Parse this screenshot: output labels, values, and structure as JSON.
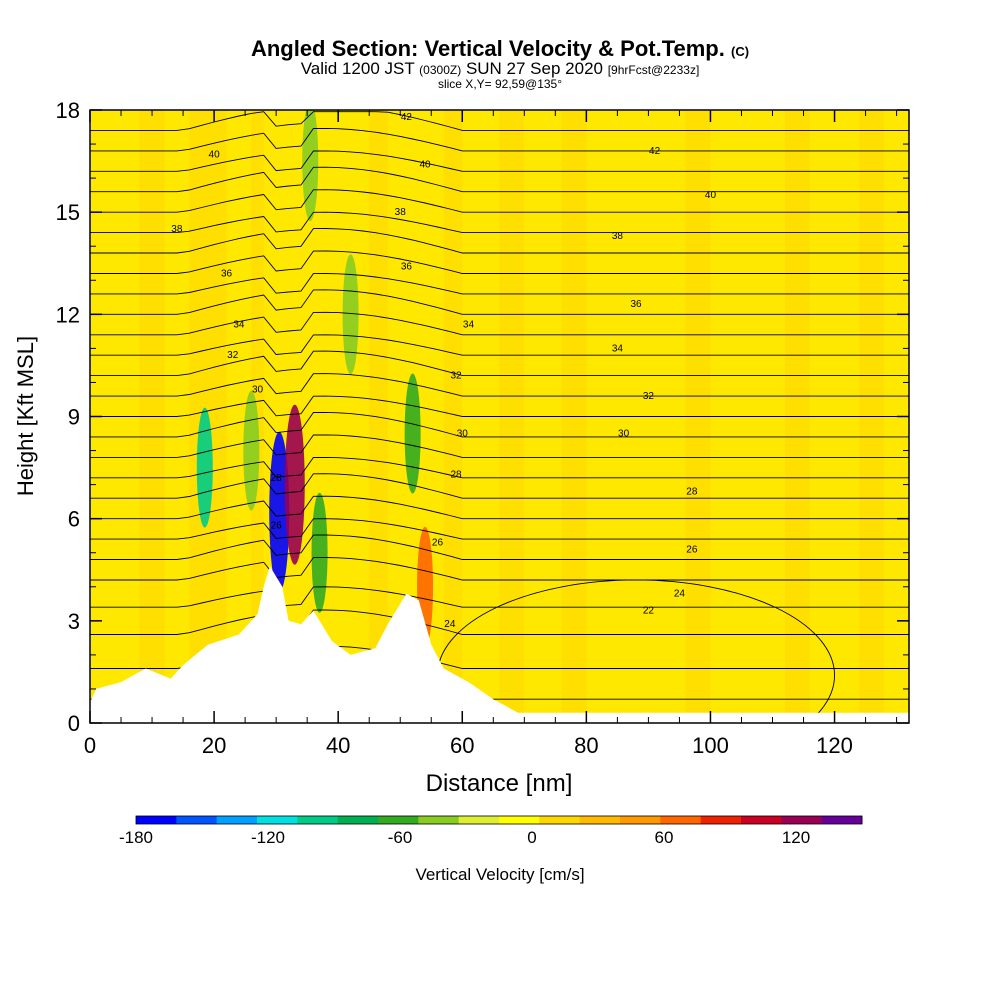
{
  "header": {
    "title": "Angled Section: Vertical Velocity & Pot.Temp.",
    "title_mark": "(C)",
    "valid_main": "Valid 1200 JST",
    "valid_zulu": "(0300Z)",
    "valid_date": "SUN 27 Sep 2020",
    "forecast": "[9hrFcst@2233z]",
    "slice": "slice X,Y= 92,59@135°"
  },
  "chart_data": {
    "type": "heatmap",
    "title": "Angled Section: Vertical Velocity & Pot.Temp.",
    "xlabel": "Distance [nm]",
    "ylabel": "Height [Kft MSL]",
    "xlim": [
      0,
      132
    ],
    "ylim": [
      0,
      18
    ],
    "x_ticks": [
      "0",
      "20",
      "40",
      "60",
      "80",
      "100",
      "120"
    ],
    "y_ticks": [
      "0",
      "3",
      "6",
      "9",
      "12",
      "15",
      "18"
    ],
    "colorbar": {
      "label": "Vertical Velocity [cm/s]",
      "range": [
        -180,
        150
      ],
      "tick_labels": [
        "-180",
        "-120",
        "-60",
        "0",
        "60",
        "120"
      ],
      "tick_values": [
        -180,
        -120,
        -60,
        0,
        60,
        120
      ],
      "colors": [
        "#0000ff",
        "#0055ff",
        "#00a0ff",
        "#00e0e0",
        "#00cc88",
        "#00b050",
        "#33aa22",
        "#88cc22",
        "#ddee33",
        "#ffff00",
        "#ffd700",
        "#ffbb00",
        "#ff9900",
        "#ff6600",
        "#ee2200",
        "#cc0022",
        "#990055",
        "#660099"
      ]
    },
    "background_value": "0 to 15 cm/s",
    "terrain_heights_kft": [
      [
        0,
        0.6
      ],
      [
        1,
        1.0
      ],
      [
        5,
        1.2
      ],
      [
        9,
        1.6
      ],
      [
        13,
        1.3
      ],
      [
        15,
        1.7
      ],
      [
        17,
        2.0
      ],
      [
        19,
        2.3
      ],
      [
        24,
        2.6
      ],
      [
        27,
        3.2
      ],
      [
        28,
        4.0
      ],
      [
        29,
        4.6
      ],
      [
        31,
        4.0
      ],
      [
        32,
        3.0
      ],
      [
        34,
        2.9
      ],
      [
        36,
        3.3
      ],
      [
        39,
        2.4
      ],
      [
        42,
        2.0
      ],
      [
        46,
        2.2
      ],
      [
        48,
        2.9
      ],
      [
        51,
        3.8
      ],
      [
        53,
        3.6
      ],
      [
        55,
        2.3
      ],
      [
        57,
        1.6
      ],
      [
        61,
        1.2
      ],
      [
        65,
        0.7
      ],
      [
        69,
        0.3
      ],
      [
        72,
        0.3
      ],
      [
        132,
        0.3
      ]
    ],
    "theta_contours": [
      {
        "label": "22",
        "label_x": 90,
        "label_y": 3.3
      },
      {
        "label": "24",
        "label_x": 95,
        "label_y": 3.8
      },
      {
        "label": "24",
        "label_x": 58,
        "label_y": 2.9
      },
      {
        "label": "26",
        "label_x": 97,
        "label_y": 5.1
      },
      {
        "label": "26",
        "label_x": 30,
        "label_y": 5.8
      },
      {
        "label": "26",
        "label_x": 56,
        "label_y": 5.3
      },
      {
        "label": "28",
        "label_x": 97,
        "label_y": 6.8
      },
      {
        "label": "28",
        "label_x": 30,
        "label_y": 7.2
      },
      {
        "label": "28",
        "label_x": 59,
        "label_y": 7.3
      },
      {
        "label": "30",
        "label_x": 86,
        "label_y": 8.5
      },
      {
        "label": "30",
        "label_x": 27,
        "label_y": 9.8
      },
      {
        "label": "30",
        "label_x": 60,
        "label_y": 8.5
      },
      {
        "label": "32",
        "label_x": 90,
        "label_y": 9.6
      },
      {
        "label": "32",
        "label_x": 23,
        "label_y": 10.8
      },
      {
        "label": "32",
        "label_x": 59,
        "label_y": 10.2
      },
      {
        "label": "34",
        "label_x": 85,
        "label_y": 11.0
      },
      {
        "label": "34",
        "label_x": 24,
        "label_y": 11.7
      },
      {
        "label": "34",
        "label_x": 61,
        "label_y": 11.7
      },
      {
        "label": "36",
        "label_x": 88,
        "label_y": 12.3
      },
      {
        "label": "36",
        "label_x": 22,
        "label_y": 13.2
      },
      {
        "label": "36",
        "label_x": 51,
        "label_y": 13.4
      },
      {
        "label": "38",
        "label_x": 85,
        "label_y": 14.3
      },
      {
        "label": "38",
        "label_x": 14,
        "label_y": 14.5
      },
      {
        "label": "38",
        "label_x": 50,
        "label_y": 15.0
      },
      {
        "label": "40",
        "label_x": 100,
        "label_y": 15.5
      },
      {
        "label": "40",
        "label_x": 20,
        "label_y": 16.7
      },
      {
        "label": "40",
        "label_x": 54,
        "label_y": 16.4
      },
      {
        "label": "42",
        "label_x": 91,
        "label_y": 16.8
      },
      {
        "label": "42",
        "label_x": 51,
        "label_y": 17.8
      }
    ],
    "theta_levels_kft": [
      0.7,
      1.6,
      2.6,
      3.4,
      4.2,
      4.8,
      5.4,
      6.0,
      6.6,
      7.2,
      7.8,
      8.4,
      9.0,
      9.6,
      10.2,
      10.8,
      11.4,
      12.0,
      12.6,
      13.2,
      13.8,
      14.4,
      15.0,
      15.6,
      16.2,
      16.8,
      17.4
    ],
    "velocity_features": [
      {
        "x": 18.5,
        "y": 7.5,
        "value": -90,
        "note": "downdraft band"
      },
      {
        "x": 30.5,
        "y": 6.2,
        "value": -170,
        "note": "strong downdraft"
      },
      {
        "x": 33.0,
        "y": 7.0,
        "value": 130,
        "note": "strong updraft"
      },
      {
        "x": 37.0,
        "y": 5.0,
        "value": -60
      },
      {
        "x": 52.0,
        "y": 8.5,
        "value": -60
      },
      {
        "x": 54.0,
        "y": 4.0,
        "value": 70
      },
      {
        "x": 42.0,
        "y": 12.0,
        "value": -50
      },
      {
        "x": 35.5,
        "y": 16.5,
        "value": -50
      },
      {
        "x": 26.0,
        "y": 8.0,
        "value": -45
      }
    ]
  }
}
